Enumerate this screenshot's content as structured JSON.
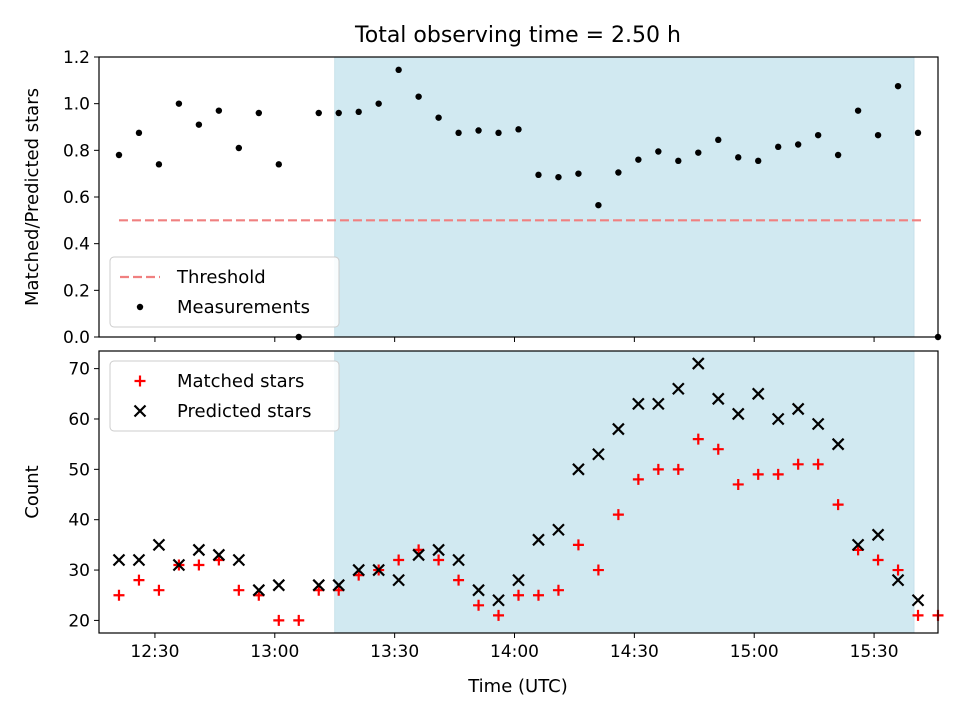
{
  "title": "Total observing time = 2.50 h",
  "shade_color": "#add8e6",
  "chart_data": [
    {
      "type": "scatter",
      "ylabel": "Matched/Predicted stars",
      "ylim": [
        0,
        1.2
      ],
      "yticks": [
        0.0,
        0.2,
        0.4,
        0.6,
        0.8,
        1.0,
        1.2
      ],
      "ytick_labels": [
        "0.0",
        "0.2",
        "0.4",
        "0.6",
        "0.8",
        "1.0",
        "1.2"
      ],
      "xlim": [
        "12:16",
        "15:46"
      ],
      "xticks": [
        "12:30",
        "13:00",
        "13:30",
        "14:00",
        "14:30",
        "15:00",
        "15:30"
      ],
      "shaded_span": [
        "13:15",
        "15:40"
      ],
      "grid": false,
      "legend_position": "lower-left",
      "threshold": {
        "name": "Threshold",
        "value": 0.5,
        "x_range": [
          "12:21",
          "15:42"
        ],
        "color": "#f08080",
        "style": "dashed"
      },
      "series": [
        {
          "name": "Measurements",
          "color": "#000000",
          "marker": "dot",
          "x": [
            "12:21",
            "12:26",
            "12:31",
            "12:36",
            "12:41",
            "12:46",
            "12:51",
            "12:56",
            "13:01",
            "13:06",
            "13:11",
            "13:16",
            "13:21",
            "13:26",
            "13:31",
            "13:36",
            "13:41",
            "13:46",
            "13:51",
            "13:56",
            "14:01",
            "14:06",
            "14:11",
            "14:16",
            "14:21",
            "14:26",
            "14:31",
            "14:36",
            "14:41",
            "14:46",
            "14:51",
            "14:56",
            "15:01",
            "15:06",
            "15:11",
            "15:16",
            "15:21",
            "15:26",
            "15:31",
            "15:36",
            "15:41",
            "15:46"
          ],
          "y": [
            0.78,
            0.875,
            0.74,
            1.0,
            0.91,
            0.97,
            0.81,
            0.96,
            0.74,
            0.0,
            0.96,
            0.96,
            0.965,
            1.0,
            1.145,
            1.03,
            0.94,
            0.875,
            0.885,
            0.875,
            0.89,
            0.695,
            0.685,
            0.7,
            0.565,
            0.705,
            0.76,
            0.795,
            0.755,
            0.79,
            0.845,
            0.77,
            0.755,
            0.815,
            0.825,
            0.865,
            0.78,
            0.97,
            0.865,
            1.075,
            0.875,
            0.0
          ]
        }
      ]
    },
    {
      "type": "scatter",
      "xlabel": "Time (UTC)",
      "ylabel": "Count",
      "ylim": [
        17.5,
        73.5
      ],
      "yticks": [
        20,
        30,
        40,
        50,
        60,
        70
      ],
      "ytick_labels": [
        "20",
        "30",
        "40",
        "50",
        "60",
        "70"
      ],
      "xlim": [
        "12:16",
        "15:46"
      ],
      "xticks": [
        "12:30",
        "13:00",
        "13:30",
        "14:00",
        "14:30",
        "15:00",
        "15:30"
      ],
      "xtick_labels": [
        "12:30",
        "13:00",
        "13:30",
        "14:00",
        "14:30",
        "15:00",
        "15:30"
      ],
      "shaded_span": [
        "13:15",
        "15:40"
      ],
      "grid": false,
      "legend_position": "upper-left",
      "series": [
        {
          "name": "Matched stars",
          "color": "#ff0000",
          "marker": "plus",
          "x": [
            "12:21",
            "12:26",
            "12:31",
            "12:36",
            "12:41",
            "12:46",
            "12:51",
            "12:56",
            "13:01",
            "13:06",
            "13:11",
            "13:16",
            "13:21",
            "13:26",
            "13:31",
            "13:36",
            "13:41",
            "13:46",
            "13:51",
            "13:56",
            "14:01",
            "14:06",
            "14:11",
            "14:16",
            "14:21",
            "14:26",
            "14:31",
            "14:36",
            "14:41",
            "14:46",
            "14:51",
            "14:56",
            "15:01",
            "15:06",
            "15:11",
            "15:16",
            "15:21",
            "15:26",
            "15:31",
            "15:36",
            "15:41",
            "15:46"
          ],
          "y": [
            25,
            28,
            26,
            31,
            31,
            32,
            26,
            25,
            20,
            20,
            26,
            26,
            29,
            30,
            32,
            34,
            32,
            28,
            23,
            21,
            25,
            25,
            26,
            35,
            30,
            41,
            48,
            50,
            50,
            56,
            54,
            47,
            49,
            49,
            51,
            51,
            43,
            34,
            32,
            30,
            21,
            21
          ]
        },
        {
          "name": "Predicted stars",
          "color": "#000000",
          "marker": "x",
          "x": [
            "12:21",
            "12:26",
            "12:31",
            "12:36",
            "12:41",
            "12:46",
            "12:51",
            "12:56",
            "13:01",
            "13:11",
            "13:16",
            "13:21",
            "13:26",
            "13:31",
            "13:36",
            "13:41",
            "13:46",
            "13:51",
            "13:56",
            "14:01",
            "14:06",
            "14:11",
            "14:16",
            "14:21",
            "14:26",
            "14:31",
            "14:36",
            "14:41",
            "14:46",
            "14:51",
            "14:56",
            "15:01",
            "15:06",
            "15:11",
            "15:16",
            "15:21",
            "15:26",
            "15:31",
            "15:36",
            "15:41"
          ],
          "y": [
            32,
            32,
            35,
            31,
            34,
            33,
            32,
            26,
            27,
            27,
            27,
            30,
            30,
            28,
            33,
            34,
            32,
            26,
            24,
            28,
            36,
            38,
            50,
            53,
            58,
            63,
            63,
            66,
            71,
            64,
            61,
            65,
            60,
            62,
            59,
            55,
            35,
            37,
            28,
            24
          ]
        }
      ]
    }
  ]
}
